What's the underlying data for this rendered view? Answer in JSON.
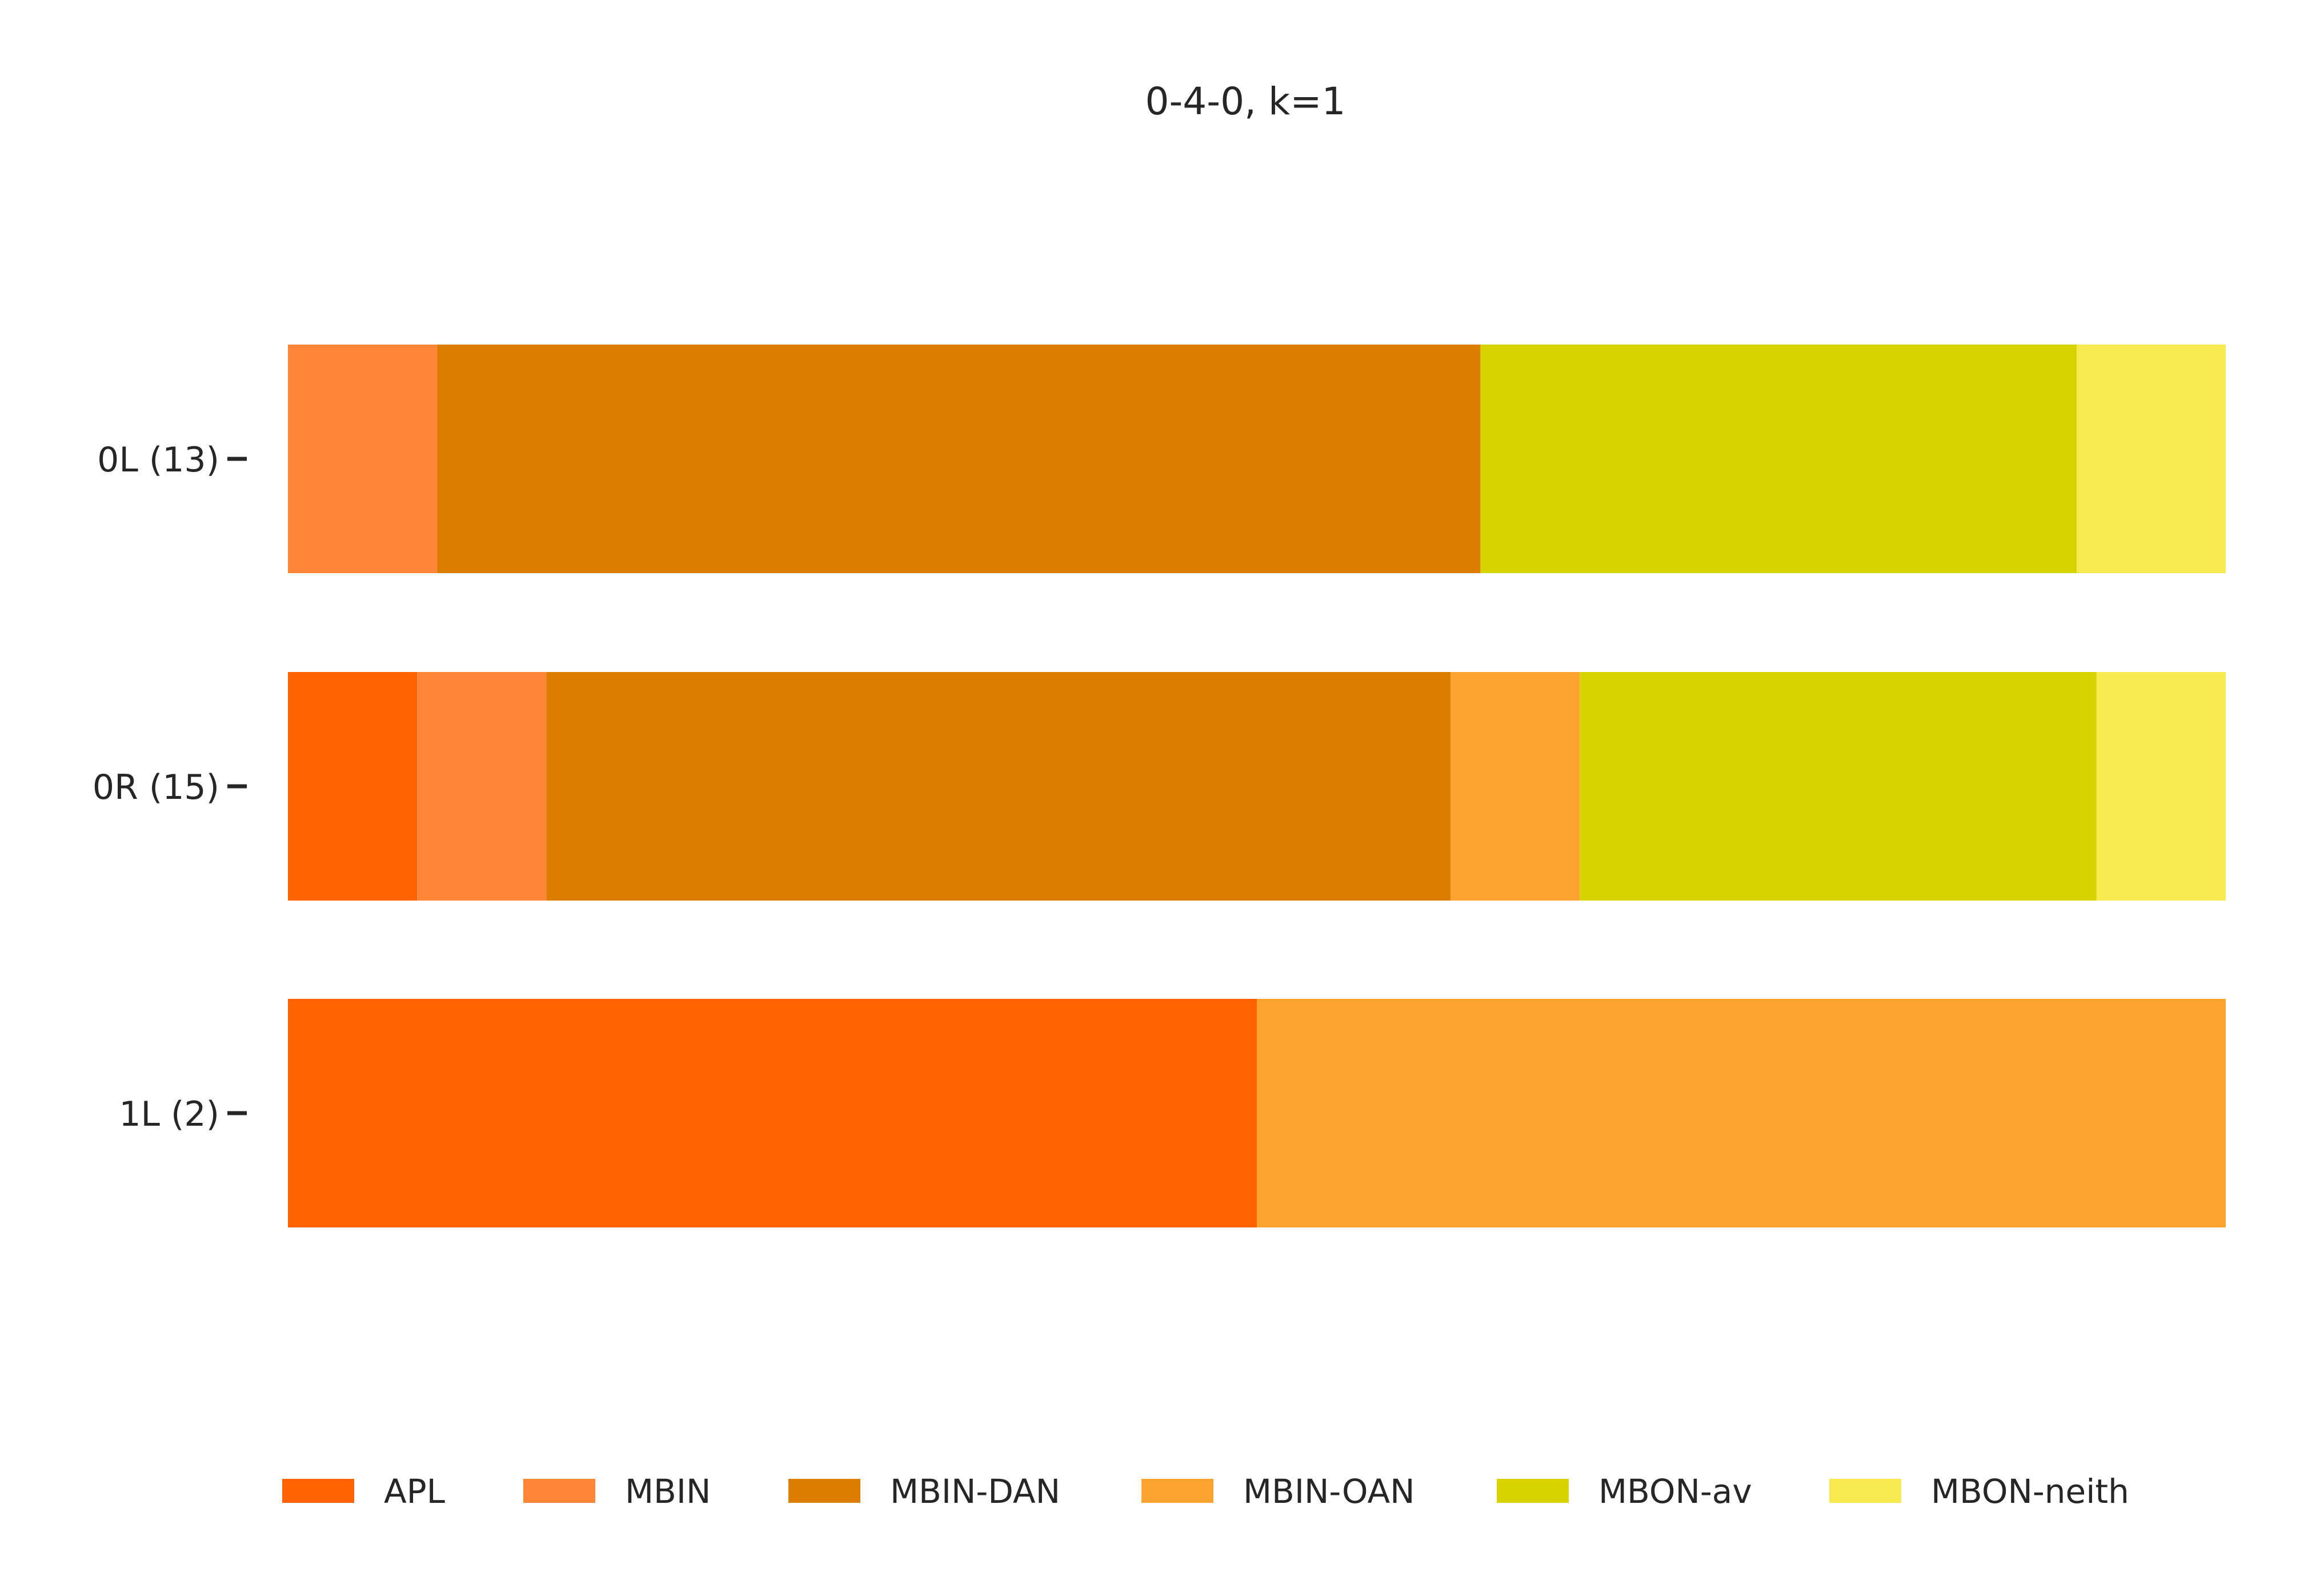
{
  "chart_data": {
    "type": "bar",
    "orientation": "horizontal",
    "stacked": true,
    "normalized": true,
    "title": "0-4-0, k=1",
    "xlabel": "",
    "ylabel": "",
    "xlim": [
      0,
      1
    ],
    "grid": false,
    "legend_position": "bottom",
    "categories": [
      "0L (13)",
      "0R (15)",
      "1L (2)"
    ],
    "series": [
      {
        "name": "APL",
        "color": "#ff6200",
        "values": [
          0.0,
          0.0667,
          0.5
        ]
      },
      {
        "name": "MBIN",
        "color": "#ff8636",
        "values": [
          0.0769,
          0.0667,
          0.0
        ]
      },
      {
        "name": "MBIN-DAN",
        "color": "#dc7e02",
        "values": [
          0.5385,
          0.4667,
          0.0
        ]
      },
      {
        "name": "MBIN-OAN",
        "color": "#ffa330",
        "values": [
          0.0,
          0.0667,
          0.5
        ]
      },
      {
        "name": "MBON-av",
        "color": "#d8d200",
        "values": [
          0.3077,
          0.2667,
          0.0
        ]
      },
      {
        "name": "MBON-neith",
        "color": "#f7e94f",
        "values": [
          0.0769,
          0.0667,
          0.0
        ]
      }
    ]
  }
}
